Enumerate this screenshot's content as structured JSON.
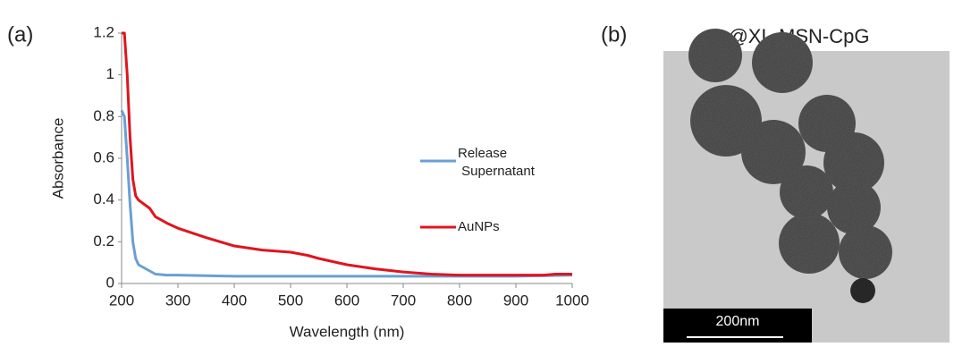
{
  "chart_data": {
    "type": "line",
    "panel_label": "(a)",
    "x_label": "Wavelength (nm)",
    "y_label": "Absorbance",
    "xlim": [
      200,
      1000
    ],
    "xticks": [
      200,
      300,
      400,
      500,
      600,
      700,
      800,
      900,
      1000
    ],
    "ylim": [
      0,
      1.2
    ],
    "yticks": [
      0,
      0.2,
      0.4,
      0.6,
      0.8,
      1,
      1.2
    ],
    "grid": false,
    "legend": "right",
    "series": [
      {
        "name": "Release Supernatant",
        "color": "#6a9fd4",
        "x": [
          200,
          205,
          210,
          215,
          220,
          225,
          230,
          240,
          250,
          260,
          280,
          300,
          400,
          500,
          600,
          700,
          800,
          900,
          1000
        ],
        "values": [
          0.83,
          0.8,
          0.6,
          0.38,
          0.2,
          0.12,
          0.09,
          0.075,
          0.06,
          0.045,
          0.04,
          0.04,
          0.035,
          0.035,
          0.035,
          0.035,
          0.035,
          0.035,
          0.04
        ]
      },
      {
        "name": "AuNPs",
        "color": "#e0141e",
        "x": [
          200,
          205,
          210,
          215,
          220,
          225,
          230,
          250,
          260,
          280,
          300,
          350,
          400,
          450,
          500,
          530,
          550,
          600,
          650,
          700,
          750,
          800,
          900,
          950,
          970,
          1000
        ],
        "values": [
          1.2,
          1.2,
          1.0,
          0.7,
          0.5,
          0.42,
          0.4,
          0.36,
          0.32,
          0.29,
          0.265,
          0.22,
          0.18,
          0.16,
          0.15,
          0.135,
          0.12,
          0.09,
          0.07,
          0.055,
          0.045,
          0.04,
          0.04,
          0.04,
          0.045,
          0.045
        ]
      }
    ]
  },
  "image_panel": {
    "panel_label": "(b)",
    "title": "Au@XL-MSN-CpG",
    "scale_bar": "200nm"
  }
}
